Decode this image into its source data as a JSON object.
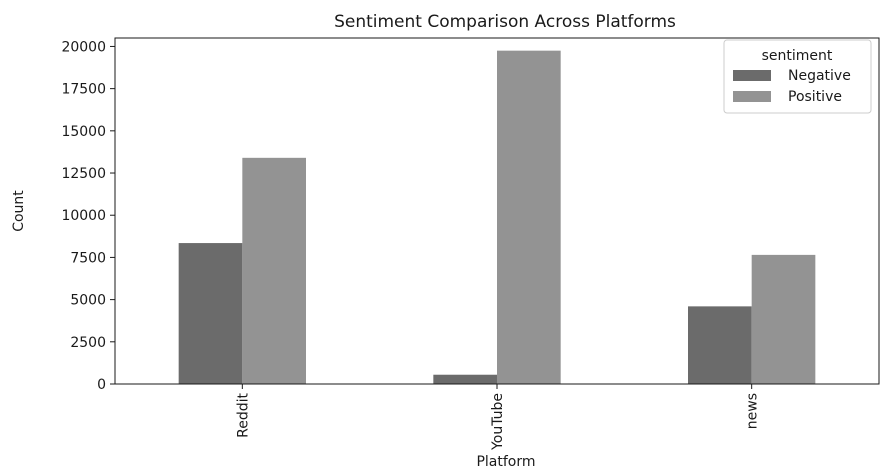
{
  "chart_data": {
    "type": "bar",
    "title": "Sentiment Comparison Across Platforms",
    "xlabel": "Platform",
    "ylabel": "Count",
    "categories": [
      "Reddit",
      "YouTube",
      "news"
    ],
    "series": [
      {
        "name": "Negative",
        "values": [
          8350,
          550,
          4600
        ],
        "color": "#6b6b6b"
      },
      {
        "name": "Positive",
        "values": [
          13400,
          19750,
          7650
        ],
        "color": "#939393"
      }
    ],
    "ylim": [
      0,
      20500
    ],
    "yticks": [
      0,
      2500,
      5000,
      7500,
      10000,
      12500,
      15000,
      17500,
      20000
    ],
    "legend": {
      "title": "sentiment",
      "placement": "top-right"
    },
    "grid": false
  }
}
